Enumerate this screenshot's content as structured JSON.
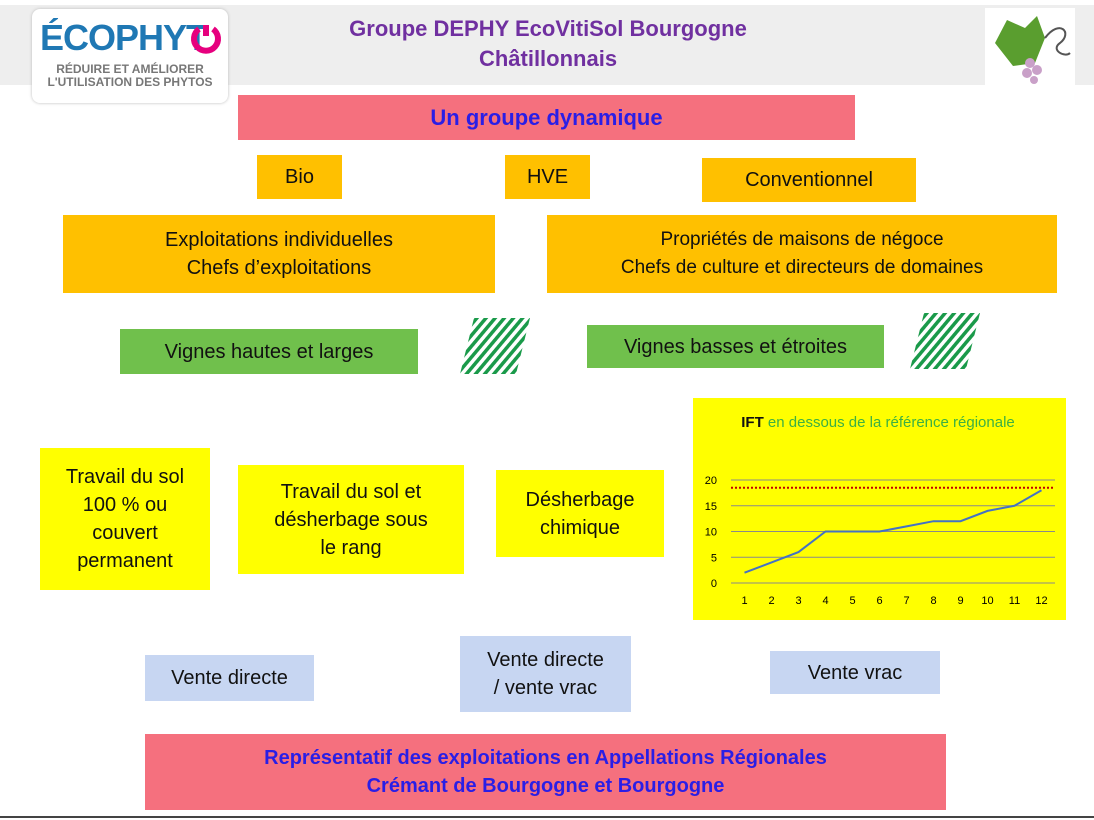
{
  "header": {
    "title_lines": [
      "Groupe DEPHY EcoVitiSol Bourgogne",
      "Châtillonnais"
    ],
    "logo": {
      "brand": "ÉCOPHYT",
      "tagline_lines": [
        "RÉDUIRE ET AMÉLIORER",
        "L'UTILISATION DES PHYTOS"
      ]
    }
  },
  "headline": "Un groupe dynamique",
  "modes": [
    "Bio",
    "HVE",
    "Conventionnel"
  ],
  "structures": [
    [
      "Exploitations individuelles",
      "Chefs d’exploitations"
    ],
    [
      "Propriétés de maisons de négoce",
      "Chefs de culture et directeurs de domaines"
    ]
  ],
  "vineyards": [
    "Vignes hautes et larges",
    "Vignes basses et étroites"
  ],
  "practices": [
    [
      "Travail du sol",
      "100 % ou",
      "couvert",
      "permanent"
    ],
    [
      "Travail du sol et",
      "désherbage sous",
      "le rang"
    ],
    [
      "Désherbage",
      "chimique"
    ]
  ],
  "sales": [
    [
      "Vente directe"
    ],
    [
      "Vente directe",
      "/ vente vrac"
    ],
    [
      "Vente vrac"
    ]
  ],
  "footer_lines": [
    "Représentatif des exploitations en Appellations Régionales",
    "Crémant de Bourgogne et Bourgogne"
  ],
  "chart_data": {
    "type": "line",
    "title": "IFT",
    "subtitle": "en dessous de la référence régionale",
    "categories": [
      "1",
      "2",
      "3",
      "4",
      "5",
      "6",
      "7",
      "8",
      "9",
      "10",
      "11",
      "12"
    ],
    "values": [
      2,
      4,
      6,
      10,
      10,
      10,
      11,
      12,
      12,
      14,
      15,
      18
    ],
    "color": "#4472c4",
    "ylim": [
      0,
      20
    ],
    "yticks": [
      0,
      5,
      10,
      15,
      20
    ],
    "grid": true,
    "reference_line": {
      "value": 18.5,
      "color": "#c00000"
    }
  }
}
